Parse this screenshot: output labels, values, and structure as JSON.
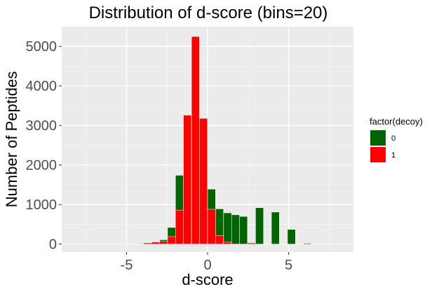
{
  "chart_data": {
    "type": "bar",
    "title": "Distribution of d-score (bins=20)",
    "xlabel": "d-score",
    "ylabel": "Number of Peptides",
    "xlim": [
      -9.0,
      9.0
    ],
    "ylim": [
      -200,
      5500
    ],
    "x_ticks": [
      -5,
      0,
      5
    ],
    "x_tick_labels": [
      "-5",
      "0",
      "5"
    ],
    "y_ticks": [
      0,
      1000,
      2000,
      3000,
      4000,
      5000
    ],
    "y_tick_labels": [
      "0",
      "1000",
      "2000",
      "3000",
      "4000",
      "5000"
    ],
    "grid": true,
    "legend": {
      "title": "factor(decoy)",
      "position": "right"
    },
    "bin_width": 0.98,
    "series": [
      {
        "name": "0",
        "color": "#006400",
        "x": [
          -5.4,
          -4.43,
          -3.94,
          -3.45,
          -2.96,
          -2.47,
          -1.98,
          -1.49,
          -0.99,
          -0.5,
          0.0,
          0.49,
          0.98,
          1.48,
          1.97,
          2.46,
          2.96,
          3.45,
          3.94,
          4.43,
          4.93,
          5.42,
          5.91,
          6.4,
          6.9,
          7.39
        ],
        "values": [
          0,
          0,
          20,
          30,
          40,
          110,
          420,
          1740,
          3260,
          3290,
          2650,
          1390,
          890,
          790,
          740,
          700,
          0,
          920,
          0,
          810,
          0,
          370,
          0,
          20,
          0,
          0
        ]
      },
      {
        "name": "1",
        "color": "#ff0000",
        "x": [
          -5.4,
          -4.43,
          -3.94,
          -3.45,
          -2.96,
          -2.47,
          -1.98,
          -1.49,
          -0.99,
          -0.5,
          0.0,
          0.49,
          0.98,
          1.48,
          1.97,
          2.46,
          2.96,
          3.45,
          3.94,
          4.43,
          4.93,
          5.42,
          5.91,
          6.4,
          6.9,
          7.39
        ],
        "values": [
          10,
          10,
          30,
          50,
          70,
          190,
          860,
          3260,
          5250,
          3180,
          880,
          220,
          50,
          0,
          0,
          30,
          0,
          0,
          0,
          0,
          0,
          0,
          0,
          0,
          0,
          0
        ]
      }
    ]
  }
}
